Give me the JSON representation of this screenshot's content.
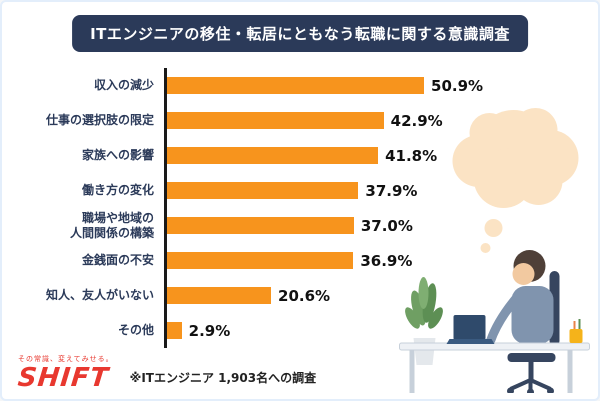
{
  "header": {
    "title": "ITエンジニアの移住・転居にともなう転職に関する意識調査",
    "bg_color": "#2b3a59",
    "text_color": "#ffffff"
  },
  "chart_data": {
    "type": "bar",
    "orientation": "horizontal",
    "title": "ITエンジニアの移住・転居にともなう転職に関する意識調査",
    "categories": [
      "収入の減少",
      "仕事の選択肢の限定",
      "家族への影響",
      "働き方の変化",
      "職場や地域の\n人間関係の構築",
      "金銭面の不安",
      "知人、友人がいない",
      "その他"
    ],
    "values": [
      50.9,
      42.9,
      41.8,
      37.9,
      37.0,
      36.9,
      20.6,
      2.9
    ],
    "value_labels": [
      "50.9%",
      "42.9%",
      "41.8%",
      "37.9%",
      "37.0%",
      "36.9%",
      "20.6%",
      "2.9%"
    ],
    "bar_color": "#f7941d",
    "label_color": "#2b3a59",
    "value_color": "#111111",
    "xlim": [
      0,
      60
    ],
    "grid": false,
    "legend": "none"
  },
  "footer": {
    "logo_tagline": "その常識、変えてみせる。",
    "logo_text": "SHIFT",
    "logo_color": "#e8382f",
    "note": "※ITエンジニア 1,903名への調査"
  },
  "illustration": {
    "bubble_color": "#fbe3c4",
    "plant_color": "#6f9f63",
    "shirt_color": "#8094ae",
    "hair_color": "#4f4038",
    "chair_color": "#36455f",
    "accent_cup_color": "#f5b31a"
  }
}
